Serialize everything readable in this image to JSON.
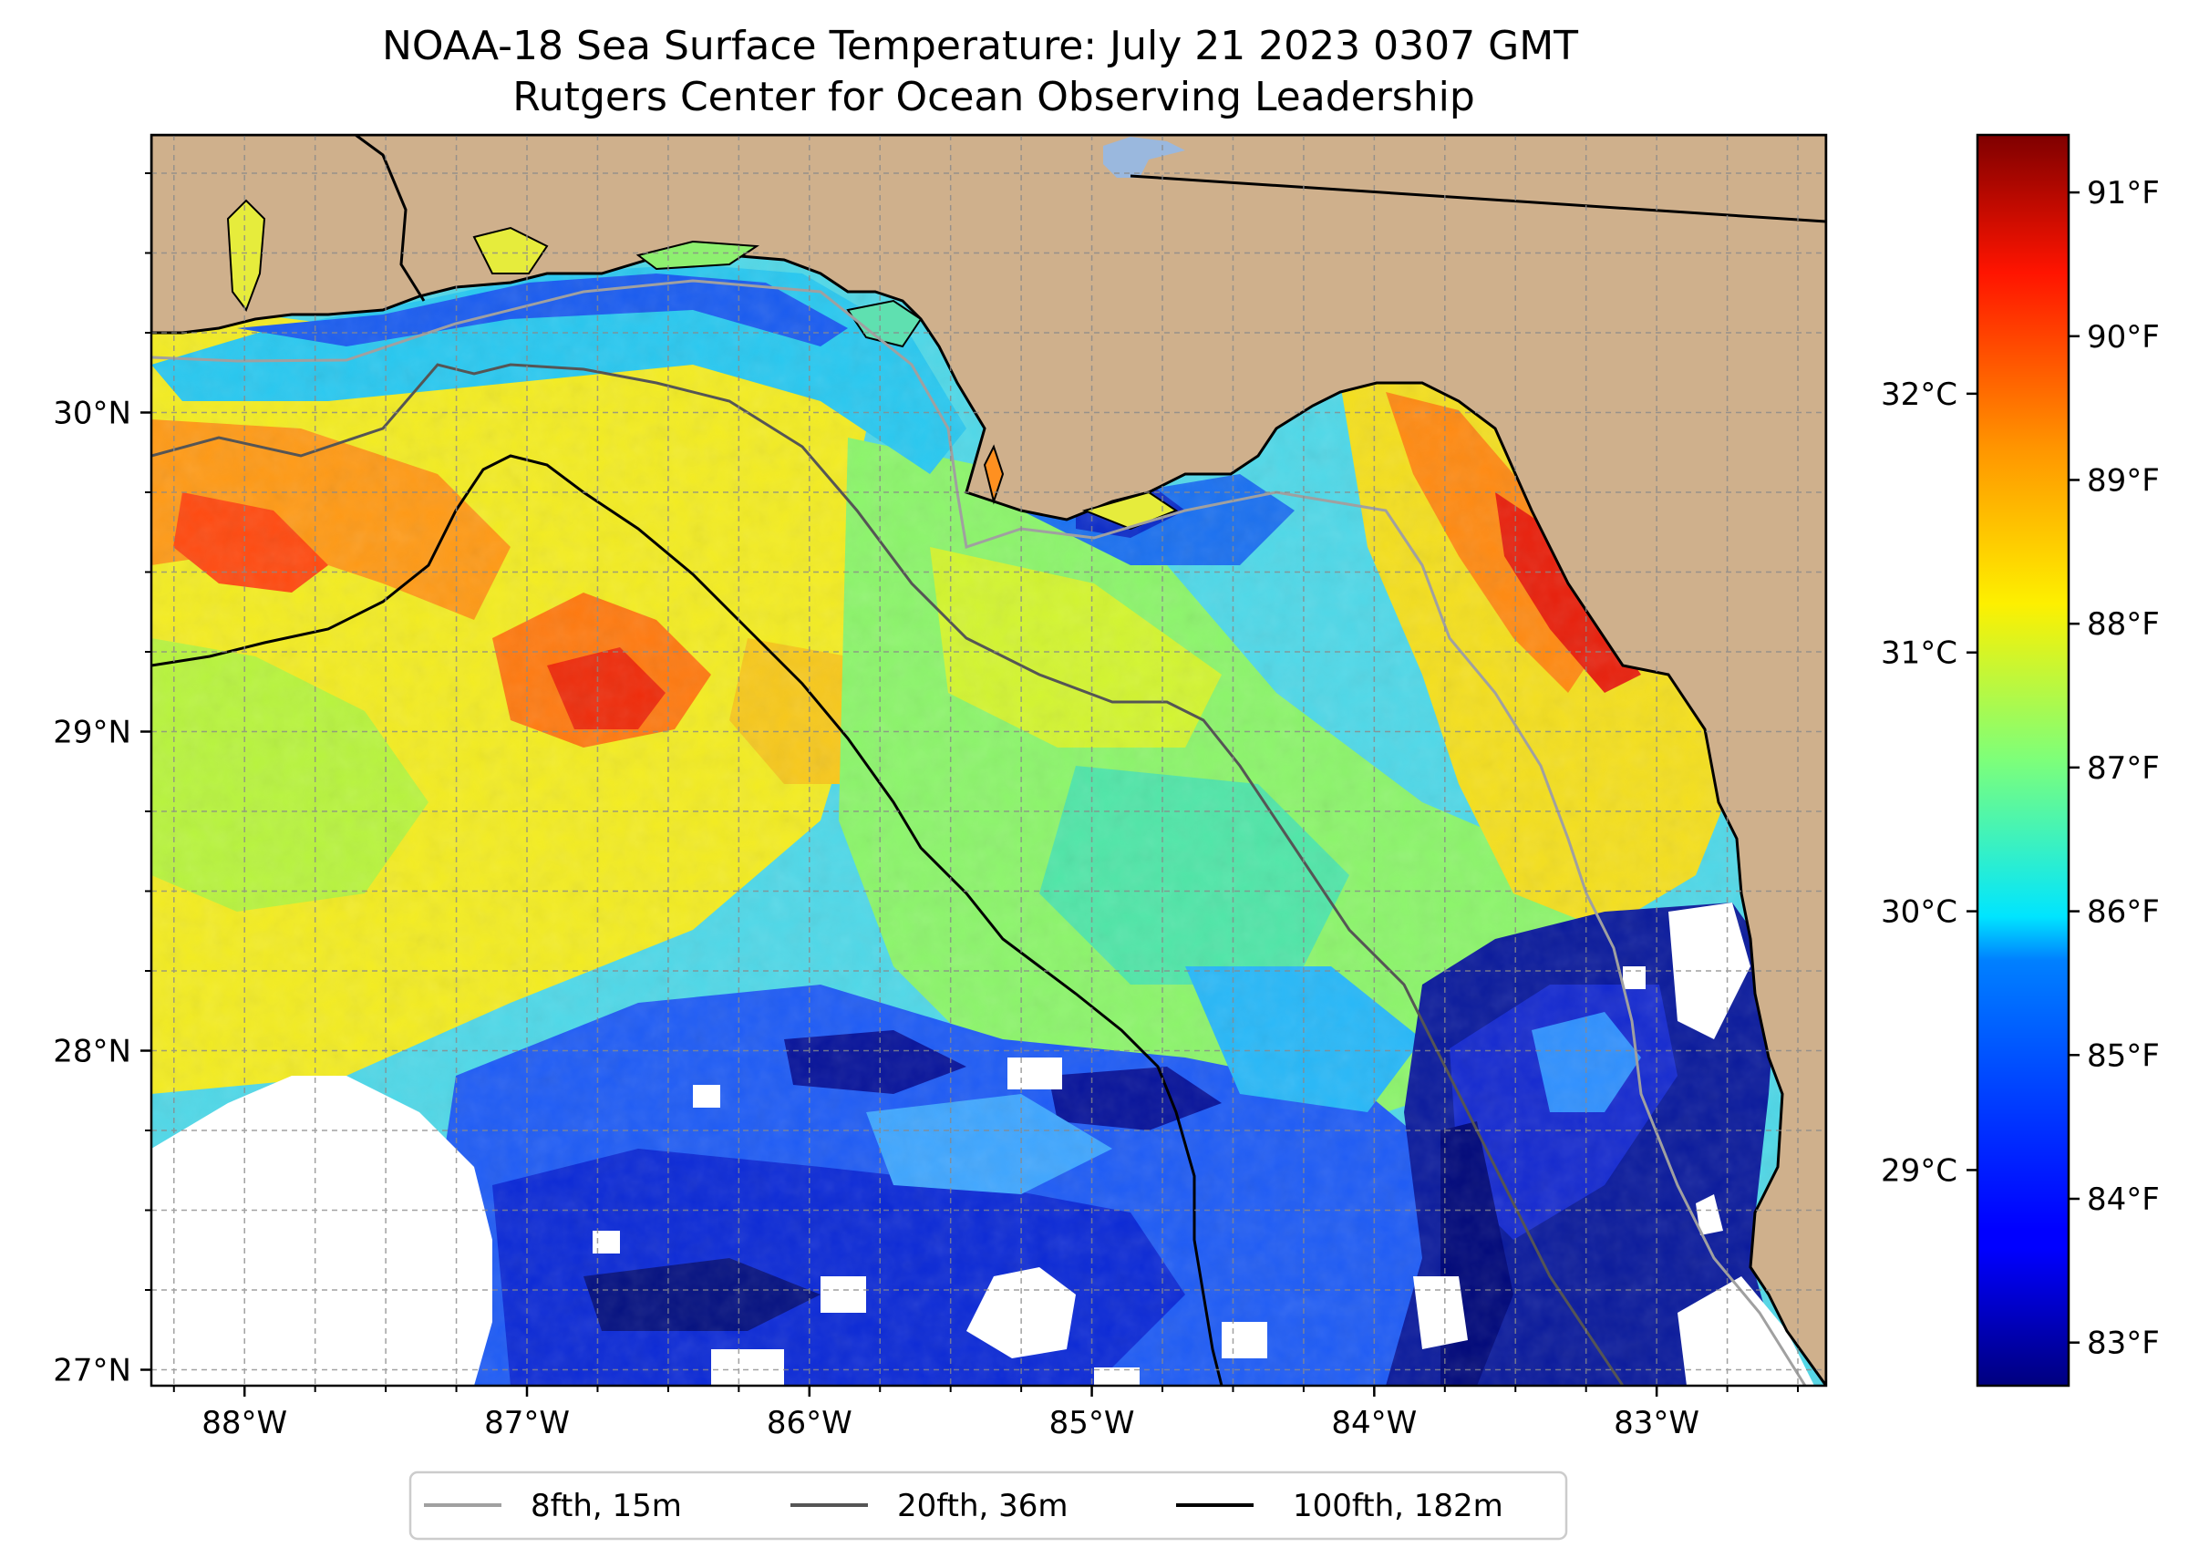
{
  "title": {
    "line1": "NOAA-18 Sea Surface Temperature: July 21 2023 0307 GMT",
    "line2": "Rutgers Center for Ocean Observing Leadership"
  },
  "map": {
    "lon_labels": [
      "88°W",
      "87°W",
      "86°W",
      "85°W",
      "84°W",
      "83°W"
    ],
    "lat_labels": [
      "30°N",
      "29°N",
      "28°N",
      "27°N"
    ],
    "lon_values": [
      -88,
      -87,
      -86,
      -85,
      -84,
      -83
    ],
    "lat_values": [
      30,
      29,
      28,
      27
    ],
    "extent": {
      "lon": [
        -88.33,
        -82.4
      ],
      "lat": [
        26.95,
        30.87
      ]
    },
    "colors": {
      "land": "#cfb08c",
      "nodata": "#ffffff",
      "lake": "#9ab8de"
    }
  },
  "colorbar": {
    "celsius": {
      "labels": [
        "32°C",
        "31°C",
        "30°C",
        "29°C"
      ],
      "values": [
        32,
        31,
        30,
        29
      ]
    },
    "fahrenheit": {
      "labels": [
        "91°F",
        "90°F",
        "89°F",
        "88°F",
        "87°F",
        "86°F",
        "85°F",
        "84°F",
        "83°F"
      ],
      "values": [
        91,
        90,
        89,
        88,
        87,
        86,
        85,
        84,
        83
      ]
    },
    "range_f": [
      82.7,
      91.4
    ],
    "colormap": "jet"
  },
  "legend": {
    "items": [
      {
        "label": "8fth, 15m",
        "color": "#a0a0a0"
      },
      {
        "label": "20fth, 36m",
        "color": "#555555"
      },
      {
        "label": "100fth, 182m",
        "color": "#000000"
      }
    ]
  }
}
